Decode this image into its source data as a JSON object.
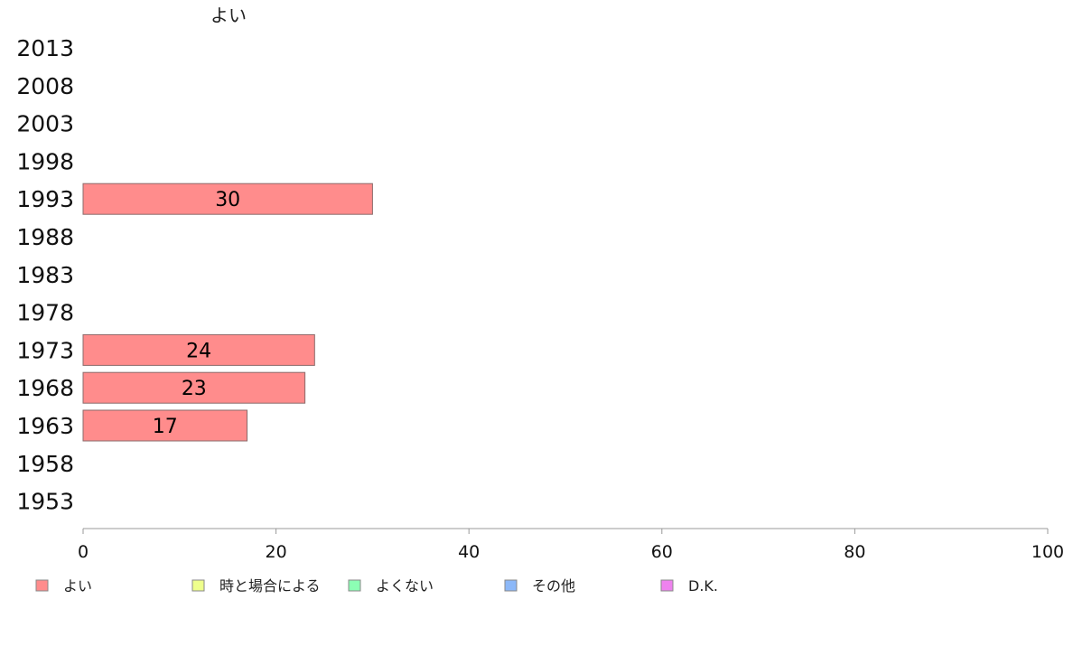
{
  "chart_data": {
    "type": "bar",
    "orientation": "horizontal",
    "series_title": "よい",
    "categories": [
      "2013",
      "2008",
      "2003",
      "1998",
      "1993",
      "1988",
      "1983",
      "1978",
      "1973",
      "1968",
      "1963",
      "1958",
      "1953"
    ],
    "series": [
      {
        "name": "よい",
        "values": [
          null,
          null,
          null,
          null,
          30,
          null,
          null,
          null,
          24,
          23,
          17,
          null,
          null
        ]
      }
    ],
    "xlim": [
      0,
      100
    ],
    "xticks": [
      "0",
      "20",
      "40",
      "60",
      "80",
      "100"
    ],
    "legend": [
      {
        "label": "よい",
        "color": "#ff8c8c"
      },
      {
        "label": "時と場合による",
        "color": "#eeff8c"
      },
      {
        "label": "よくない",
        "color": "#8cffb4"
      },
      {
        "label": "その他",
        "color": "#8cb8f8"
      },
      {
        "label": "D.K.",
        "color": "#ee82ee"
      }
    ],
    "legend_position": "bottom-left",
    "bar_color": "#ff8c8c"
  }
}
